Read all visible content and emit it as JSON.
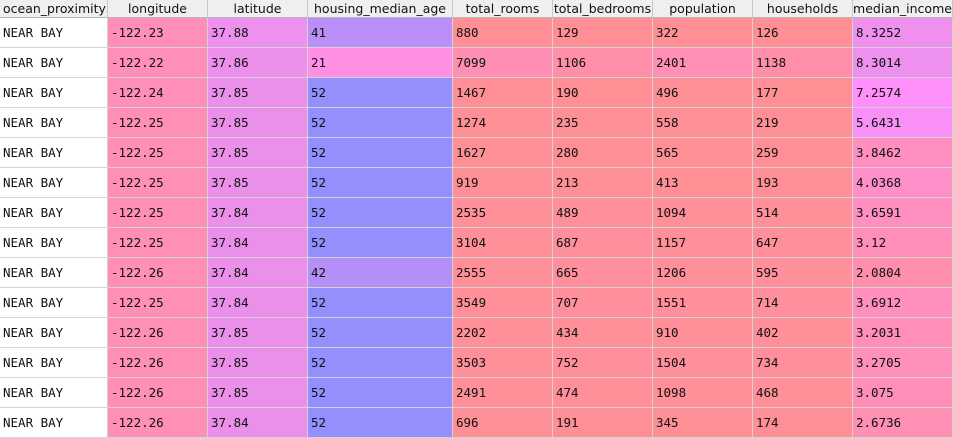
{
  "table": {
    "columns": [
      "ocean_proximity",
      "longitude",
      "latitude",
      "housing_median_age",
      "total_rooms",
      "total_bedrooms",
      "population",
      "households",
      "median_income"
    ],
    "rows": [
      [
        "NEAR BAY",
        "-122.23",
        "37.88",
        "41",
        "880",
        "129",
        "322",
        "126",
        "8.3252"
      ],
      [
        "NEAR BAY",
        "-122.22",
        "37.86",
        "21",
        "7099",
        "1106",
        "2401",
        "1138",
        "8.3014"
      ],
      [
        "NEAR BAY",
        "-122.24",
        "37.85",
        "52",
        "1467",
        "190",
        "496",
        "177",
        "7.2574"
      ],
      [
        "NEAR BAY",
        "-122.25",
        "37.85",
        "52",
        "1274",
        "235",
        "558",
        "219",
        "5.6431"
      ],
      [
        "NEAR BAY",
        "-122.25",
        "37.85",
        "52",
        "1627",
        "280",
        "565",
        "259",
        "3.8462"
      ],
      [
        "NEAR BAY",
        "-122.25",
        "37.85",
        "52",
        "919",
        "213",
        "413",
        "193",
        "4.0368"
      ],
      [
        "NEAR BAY",
        "-122.25",
        "37.84",
        "52",
        "2535",
        "489",
        "1094",
        "514",
        "3.6591"
      ],
      [
        "NEAR BAY",
        "-122.25",
        "37.84",
        "52",
        "3104",
        "687",
        "1157",
        "647",
        "3.12"
      ],
      [
        "NEAR BAY",
        "-122.26",
        "37.84",
        "42",
        "2555",
        "665",
        "1206",
        "595",
        "2.0804"
      ],
      [
        "NEAR BAY",
        "-122.25",
        "37.84",
        "52",
        "3549",
        "707",
        "1551",
        "714",
        "3.6912"
      ],
      [
        "NEAR BAY",
        "-122.26",
        "37.85",
        "52",
        "2202",
        "434",
        "910",
        "402",
        "3.2031"
      ],
      [
        "NEAR BAY",
        "-122.26",
        "37.85",
        "52",
        "3503",
        "752",
        "1504",
        "734",
        "3.2705"
      ],
      [
        "NEAR BAY",
        "-122.26",
        "37.85",
        "52",
        "2491",
        "474",
        "1098",
        "468",
        "3.075"
      ],
      [
        "NEAR BAY",
        "-122.26",
        "37.84",
        "52",
        "696",
        "191",
        "345",
        "174",
        "2.6736"
      ]
    ],
    "cell_colors": [
      [
        "#ffffff",
        "#ff8fb8",
        "#ee90ee",
        "#bb8ff8",
        "#ff8f95",
        "#ff8f95",
        "#ff8f95",
        "#ff8f95",
        "#ef90ef"
      ],
      [
        "#ffffff",
        "#ff8fba",
        "#ec90ec",
        "#ff8fe4",
        "#ff8fb2",
        "#ff8fa8",
        "#ff8fb4",
        "#ff8fa8",
        "#ee90ee"
      ],
      [
        "#ffffff",
        "#ff8fb8",
        "#ea90ea",
        "#958ffe",
        "#ff8f97",
        "#ff8f95",
        "#ff8f96",
        "#ff8f95",
        "#fe8ffb"
      ],
      [
        "#ffffff",
        "#ff8fb6",
        "#ea90ea",
        "#958ffe",
        "#ff8f96",
        "#ff8f96",
        "#ff8f96",
        "#ff8f96",
        "#f890f8"
      ],
      [
        "#ffffff",
        "#ff8fb6",
        "#ea90ea",
        "#958ffe",
        "#ff8f97",
        "#ff8f96",
        "#ff8f96",
        "#ff8f96",
        "#ff8fc0"
      ],
      [
        "#ffffff",
        "#ff8fb6",
        "#ea90ea",
        "#958ffe",
        "#ff8f96",
        "#ff8f96",
        "#ff8f95",
        "#ff8f96",
        "#ff8fc9"
      ],
      [
        "#ffffff",
        "#ff8fb6",
        "#ea90ea",
        "#958ffe",
        "#ff8f98",
        "#ff8f9a",
        "#ff8f99",
        "#ff8f99",
        "#ff8fc0"
      ],
      [
        "#ffffff",
        "#ff8fb6",
        "#ea90ea",
        "#958ffe",
        "#ff8f99",
        "#ff8f9c",
        "#ff8f9a",
        "#ff8f9b",
        "#ff8fb8"
      ],
      [
        "#ffffff",
        "#ff8fb6",
        "#ea90ea",
        "#b58ff8",
        "#ff8f98",
        "#ff8f9c",
        "#ff8f9a",
        "#ff8f9a",
        "#ff8fac"
      ],
      [
        "#ffffff",
        "#ff8fb6",
        "#ea90ea",
        "#958ffe",
        "#ff8f99",
        "#ff8f9c",
        "#ff8f9b",
        "#ff8f9c",
        "#ff8fbe"
      ],
      [
        "#ffffff",
        "#ff8fb6",
        "#ea90ea",
        "#958ffe",
        "#ff8f98",
        "#ff8f99",
        "#ff8f98",
        "#ff8f99",
        "#ff8fb8"
      ],
      [
        "#ffffff",
        "#ff8fb6",
        "#ea90ea",
        "#958ffe",
        "#ff8f99",
        "#ff8f9c",
        "#ff8f9b",
        "#ff8f9c",
        "#ff8fbb"
      ],
      [
        "#ffffff",
        "#ff8fb6",
        "#ea90ea",
        "#958ffe",
        "#ff8f98",
        "#ff8f99",
        "#ff8f99",
        "#ff8f99",
        "#ff8fb8"
      ],
      [
        "#ffffff",
        "#ff8fb6",
        "#ea90ea",
        "#958ffe",
        "#ff8f96",
        "#ff8f96",
        "#ff8f96",
        "#ff8f96",
        "#ff8fb3"
      ]
    ]
  }
}
